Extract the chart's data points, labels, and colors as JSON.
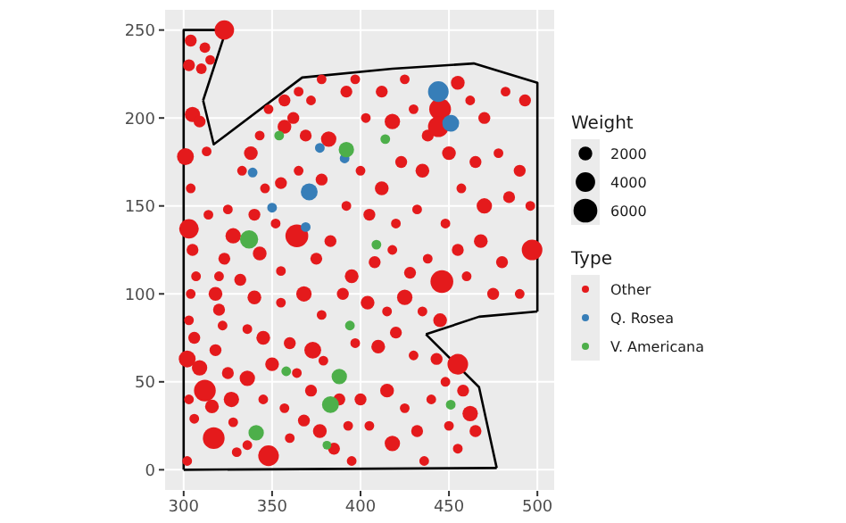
{
  "chart_data": {
    "type": "bubble",
    "legend_title": "Type",
    "annotations": [
      "Weight"
    ],
    "size_legend": [
      2000,
      4000,
      6000
    ],
    "xlim": [
      289,
      510
    ],
    "ylim": [
      -12,
      262
    ],
    "xticks": [
      300,
      350,
      400,
      450,
      500
    ],
    "yticks": [
      0,
      50,
      100,
      150,
      200,
      250
    ],
    "grid": true,
    "legend": "right",
    "series": [
      {
        "type": "line",
        "color": "#000000",
        "marker": "none",
        "x": [
          300,
          300,
          324
        ],
        "values": [
          0,
          250,
          250
        ]
      },
      {
        "type": "line",
        "color": "#000000",
        "marker": "none",
        "x": [
          311,
          324
        ],
        "values": [
          210,
          250
        ]
      },
      {
        "type": "line",
        "color": "#000000",
        "marker": "none",
        "x": [
          311,
          317,
          367,
          418,
          464,
          500,
          500
        ],
        "values": [
          210,
          185,
          223,
          228,
          231,
          220,
          90
        ]
      },
      {
        "type": "line",
        "color": "#000000",
        "marker": "none",
        "x": [
          437,
          467,
          500
        ],
        "values": [
          77,
          87,
          90
        ]
      },
      {
        "type": "line",
        "color": "#000000",
        "marker": "none",
        "x": [
          437,
          467,
          477
        ],
        "values": [
          77,
          47,
          1
        ]
      },
      {
        "type": "line",
        "color": "#000000",
        "marker": "none",
        "x": [
          300,
          477
        ],
        "values": [
          0,
          1
        ]
      },
      {
        "name": "Other",
        "color": "#e41a1c",
        "x": [
          304,
          312,
          303,
          310,
          323,
          315,
          305,
          309,
          301,
          313,
          304,
          303,
          305,
          307,
          304,
          303,
          306,
          302,
          309,
          312,
          316,
          303,
          317,
          302,
          306,
          320,
          322,
          318,
          325,
          327,
          328,
          330,
          325,
          328,
          320,
          323,
          318,
          314,
          333,
          338,
          343,
          348,
          357,
          362,
          372,
          365,
          378,
          357,
          369,
          382,
          346,
          355,
          365,
          378,
          340,
          352,
          364,
          343,
          355,
          375,
          383,
          332,
          340,
          355,
          368,
          378,
          336,
          345,
          360,
          373,
          350,
          364,
          336,
          372,
          345,
          357,
          368,
          336,
          348,
          360,
          377,
          385,
          379,
          392,
          403,
          397,
          412,
          425,
          418,
          430,
          438,
          400,
          412,
          423,
          435,
          392,
          405,
          420,
          432,
          395,
          408,
          418,
          428,
          438,
          390,
          404,
          415,
          425,
          435,
          397,
          410,
          420,
          430,
          400,
          415,
          425,
          405,
          418,
          432,
          395,
          436,
          388,
          393,
          445,
          444,
          455,
          462,
          470,
          482,
          493,
          450,
          465,
          478,
          490,
          457,
          470,
          484,
          496,
          446,
          455,
          468,
          480,
          497,
          490,
          448,
          460,
          475,
          455,
          445,
          448,
          458,
          462,
          465,
          455,
          450,
          443,
          440
        ],
        "values": [
          244,
          240,
          230,
          228,
          250,
          233,
          202,
          198,
          178,
          181,
          160,
          137,
          125,
          110,
          100,
          85,
          75,
          63,
          58,
          45,
          36,
          40,
          18,
          5,
          29,
          91,
          82,
          68,
          55,
          40,
          27,
          10,
          148,
          133,
          110,
          120,
          100,
          145,
          170,
          180,
          190,
          205,
          210,
          200,
          210,
          215,
          222,
          195,
          190,
          188,
          160,
          163,
          170,
          165,
          145,
          140,
          133,
          123,
          113,
          120,
          130,
          108,
          98,
          95,
          100,
          88,
          80,
          75,
          72,
          68,
          60,
          55,
          52,
          45,
          40,
          35,
          28,
          14,
          8,
          18,
          22,
          12,
          62,
          215,
          200,
          222,
          215,
          222,
          198,
          205,
          190,
          170,
          160,
          175,
          170,
          150,
          145,
          140,
          148,
          110,
          118,
          125,
          112,
          120,
          100,
          95,
          90,
          98,
          90,
          72,
          70,
          78,
          65,
          40,
          45,
          35,
          25,
          15,
          22,
          5,
          5,
          40,
          25,
          205,
          195,
          220,
          210,
          200,
          215,
          210,
          180,
          175,
          180,
          170,
          160,
          150,
          155,
          150,
          107,
          125,
          130,
          118,
          125,
          100,
          140,
          110,
          100,
          60,
          85,
          50,
          45,
          32,
          22,
          12,
          25,
          63,
          40
        ],
        "sizes": [
          1500,
          1200,
          1500,
          1200,
          4000,
          1000,
          2500,
          1500,
          3000,
          1000,
          1000,
          4000,
          1500,
          1000,
          1000,
          1000,
          1500,
          3000,
          2500,
          5000,
          2000,
          1000,
          5000,
          1000,
          1000,
          1500,
          1000,
          1500,
          1500,
          2500,
          1000,
          1000,
          1000,
          2500,
          1000,
          1500,
          2000,
          1000,
          1000,
          2000,
          1000,
          1000,
          1500,
          1500,
          1000,
          1000,
          1000,
          2000,
          1500,
          2500,
          1000,
          1500,
          1000,
          1500,
          1500,
          1000,
          5500,
          2000,
          1000,
          1500,
          1500,
          1500,
          2000,
          1000,
          2500,
          1000,
          1000,
          2000,
          1500,
          3000,
          2000,
          1000,
          2500,
          1500,
          1000,
          1000,
          1500,
          1000,
          4500,
          1000,
          2000,
          1500,
          1000,
          1500,
          1000,
          1000,
          1500,
          1000,
          2500,
          1000,
          1500,
          1000,
          2000,
          1500,
          2000,
          1000,
          1500,
          1000,
          1000,
          2000,
          1500,
          1000,
          1500,
          1000,
          1500,
          2000,
          1000,
          2500,
          1000,
          1000,
          2000,
          1500,
          1000,
          1500,
          2000,
          1000,
          1000,
          2500,
          1500,
          1000,
          1000,
          1500,
          1000,
          5000,
          4500,
          2000,
          1000,
          1500,
          1000,
          1500,
          2000,
          1500,
          1000,
          1500,
          1000,
          2500,
          1500,
          1000,
          5500,
          1500,
          2000,
          1500,
          4500,
          1000,
          1000,
          1000,
          1500,
          4500,
          2000,
          1000,
          1500,
          2500,
          1500,
          1000,
          1000,
          1500,
          1000
        ]
      },
      {
        "name": "Q. Rosea",
        "color": "#377eb8",
        "x": [
          377,
          391,
          339,
          371,
          350,
          369,
          444,
          451
        ],
        "values": [
          183,
          177,
          169,
          158,
          149,
          138,
          215,
          197
        ],
        "sizes": [
          1000,
          1000,
          1000,
          3000,
          1000,
          1000,
          4500,
          3000
        ]
      },
      {
        "name": "V. Americana",
        "color": "#4daf4a",
        "x": [
          354,
          392,
          414,
          337,
          409,
          394,
          358,
          388,
          383,
          341,
          381,
          451
        ],
        "values": [
          190,
          182,
          188,
          131,
          128,
          82,
          56,
          53,
          37,
          21,
          14,
          37
        ],
        "sizes": [
          1000,
          2500,
          1000,
          3500,
          1000,
          1000,
          1000,
          2500,
          3000,
          2500,
          800,
          1000
        ]
      }
    ]
  }
}
